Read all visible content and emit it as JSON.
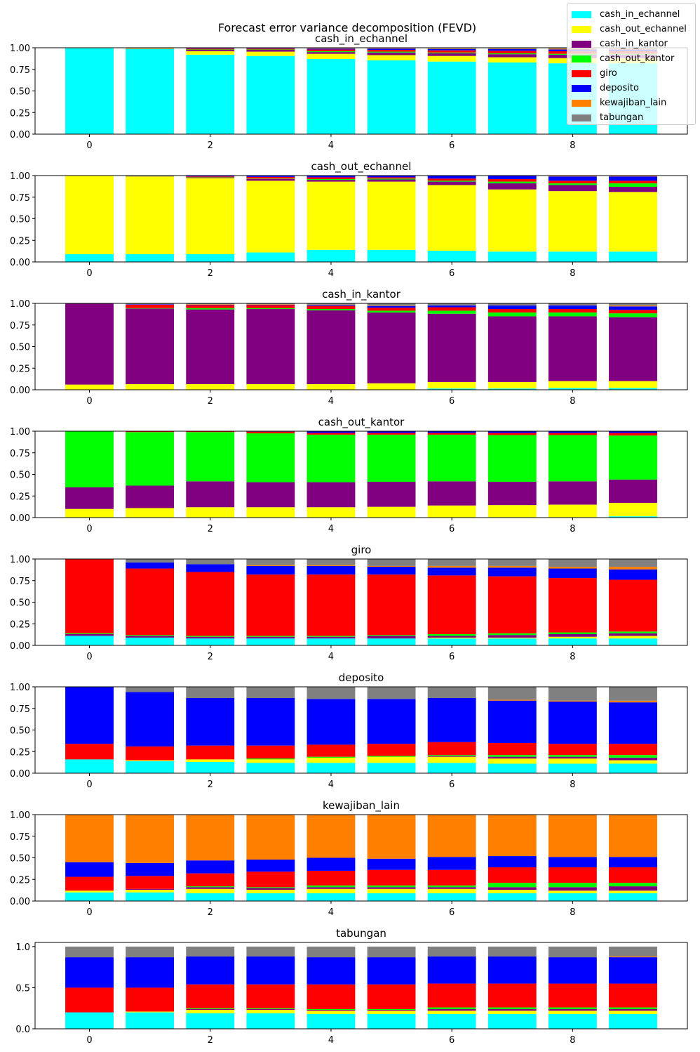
{
  "chart_data": {
    "type": "bar",
    "stacked": true,
    "suptitle": "Forecast error variance decomposition (FEVD)",
    "x": [
      0,
      1,
      2,
      3,
      4,
      5,
      6,
      7,
      8,
      9
    ],
    "xticks": [
      "0",
      "2",
      "4",
      "6",
      "8"
    ],
    "legend_position": "top-right",
    "grid": false,
    "series_names": [
      "cash_in_echannel",
      "cash_out_echannel",
      "cash_in_kantor",
      "cash_out_kantor",
      "giro",
      "deposito",
      "kewajiban_lain",
      "tabungan"
    ],
    "colors": [
      "#00ffff",
      "#ffff00",
      "#800080",
      "#00ff00",
      "#ff0000",
      "#0000ff",
      "#ff8000",
      "#808080"
    ],
    "panels": [
      {
        "title": "cash_in_echannel",
        "ylim": [
          0,
          1.0
        ],
        "yticks": [
          "0.00",
          "0.25",
          "0.50",
          "0.75",
          "1.00"
        ],
        "values": [
          [
            0.995,
            0.002,
            0.001,
            0.001,
            0.001,
            0.0,
            0.0,
            0.0
          ],
          [
            0.985,
            0.005,
            0.003,
            0.002,
            0.003,
            0.001,
            0.0,
            0.001
          ],
          [
            0.92,
            0.04,
            0.015,
            0.005,
            0.01,
            0.005,
            0.002,
            0.003
          ],
          [
            0.905,
            0.05,
            0.02,
            0.005,
            0.01,
            0.005,
            0.002,
            0.003
          ],
          [
            0.87,
            0.06,
            0.02,
            0.01,
            0.02,
            0.01,
            0.005,
            0.005
          ],
          [
            0.855,
            0.06,
            0.03,
            0.01,
            0.02,
            0.015,
            0.005,
            0.005
          ],
          [
            0.84,
            0.065,
            0.03,
            0.01,
            0.025,
            0.015,
            0.005,
            0.01
          ],
          [
            0.83,
            0.06,
            0.035,
            0.01,
            0.03,
            0.02,
            0.005,
            0.01
          ],
          [
            0.82,
            0.06,
            0.04,
            0.01,
            0.03,
            0.02,
            0.01,
            0.01
          ],
          [
            0.82,
            0.06,
            0.04,
            0.01,
            0.03,
            0.02,
            0.01,
            0.01
          ]
        ]
      },
      {
        "title": "cash_out_echannel",
        "ylim": [
          0,
          1.0
        ],
        "yticks": [
          "0.00",
          "0.25",
          "0.50",
          "0.75",
          "1.00"
        ],
        "values": [
          [
            0.09,
            0.91,
            0.0,
            0.0,
            0.0,
            0.0,
            0.0,
            0.0
          ],
          [
            0.09,
            0.9,
            0.003,
            0.002,
            0.003,
            0.002,
            0.0,
            0.0
          ],
          [
            0.09,
            0.88,
            0.005,
            0.005,
            0.01,
            0.01,
            0.0,
            0.0
          ],
          [
            0.11,
            0.83,
            0.02,
            0.005,
            0.02,
            0.015,
            0.0,
            0.0
          ],
          [
            0.14,
            0.79,
            0.02,
            0.01,
            0.02,
            0.02,
            0.0,
            0.0
          ],
          [
            0.14,
            0.79,
            0.025,
            0.01,
            0.015,
            0.02,
            0.0,
            0.0
          ],
          [
            0.13,
            0.76,
            0.04,
            0.01,
            0.025,
            0.035,
            0.0,
            0.0
          ],
          [
            0.12,
            0.72,
            0.07,
            0.02,
            0.03,
            0.04,
            0.0,
            0.0
          ],
          [
            0.12,
            0.7,
            0.07,
            0.02,
            0.03,
            0.05,
            0.01,
            0.0
          ],
          [
            0.12,
            0.69,
            0.06,
            0.04,
            0.03,
            0.05,
            0.01,
            0.0
          ]
        ]
      },
      {
        "title": "cash_in_kantor",
        "ylim": [
          0,
          1.0
        ],
        "yticks": [
          "0.00",
          "0.25",
          "0.50",
          "0.75",
          "1.00"
        ],
        "values": [
          [
            0.0,
            0.06,
            0.94,
            0.0,
            0.0,
            0.0,
            0.0,
            0.0
          ],
          [
            0.0,
            0.065,
            0.875,
            0.005,
            0.04,
            0.005,
            0.0,
            0.01
          ],
          [
            0.0,
            0.065,
            0.865,
            0.015,
            0.035,
            0.005,
            0.005,
            0.01
          ],
          [
            0.0,
            0.065,
            0.87,
            0.01,
            0.035,
            0.005,
            0.005,
            0.01
          ],
          [
            0.0,
            0.065,
            0.855,
            0.015,
            0.035,
            0.01,
            0.005,
            0.015
          ],
          [
            0.0,
            0.075,
            0.82,
            0.02,
            0.035,
            0.02,
            0.005,
            0.025
          ],
          [
            0.015,
            0.075,
            0.79,
            0.035,
            0.04,
            0.02,
            0.0,
            0.025
          ],
          [
            0.015,
            0.075,
            0.76,
            0.045,
            0.04,
            0.04,
            0.0,
            0.025
          ],
          [
            0.02,
            0.08,
            0.75,
            0.045,
            0.04,
            0.04,
            0.0,
            0.025
          ],
          [
            0.02,
            0.08,
            0.74,
            0.045,
            0.04,
            0.04,
            0.01,
            0.025
          ]
        ]
      },
      {
        "title": "cash_out_kantor",
        "ylim": [
          0,
          1.0
        ],
        "yticks": [
          "0.00",
          "0.25",
          "0.50",
          "0.75",
          "1.00"
        ],
        "values": [
          [
            0.0,
            0.1,
            0.25,
            0.65,
            0.0,
            0.0,
            0.0,
            0.0
          ],
          [
            0.0,
            0.11,
            0.26,
            0.62,
            0.01,
            0.0,
            0.0,
            0.0
          ],
          [
            0.0,
            0.12,
            0.3,
            0.57,
            0.01,
            0.0,
            0.0,
            0.0
          ],
          [
            0.0,
            0.12,
            0.29,
            0.565,
            0.02,
            0.005,
            0.0,
            0.0
          ],
          [
            0.0,
            0.12,
            0.29,
            0.55,
            0.02,
            0.02,
            0.0,
            0.0
          ],
          [
            0.0,
            0.125,
            0.29,
            0.545,
            0.02,
            0.02,
            0.0,
            0.0
          ],
          [
            0.0,
            0.14,
            0.28,
            0.54,
            0.02,
            0.02,
            0.0,
            0.0
          ],
          [
            0.005,
            0.14,
            0.27,
            0.54,
            0.025,
            0.02,
            0.0,
            0.0
          ],
          [
            0.005,
            0.145,
            0.27,
            0.535,
            0.025,
            0.02,
            0.0,
            0.0
          ],
          [
            0.015,
            0.155,
            0.27,
            0.51,
            0.03,
            0.02,
            0.0,
            0.0
          ]
        ]
      },
      {
        "title": "giro",
        "ylim": [
          0,
          1.0
        ],
        "yticks": [
          "0.00",
          "0.25",
          "0.50",
          "0.75",
          "1.00"
        ],
        "values": [
          [
            0.11,
            0.0,
            0.02,
            0.01,
            0.86,
            0.0,
            0.0,
            0.0
          ],
          [
            0.09,
            0.0,
            0.02,
            0.01,
            0.77,
            0.07,
            0.0,
            0.04
          ],
          [
            0.08,
            0.0,
            0.02,
            0.01,
            0.74,
            0.09,
            0.0,
            0.06
          ],
          [
            0.08,
            0.0,
            0.02,
            0.01,
            0.71,
            0.1,
            0.01,
            0.07
          ],
          [
            0.08,
            0.0,
            0.02,
            0.01,
            0.71,
            0.1,
            0.01,
            0.07
          ],
          [
            0.08,
            0.0,
            0.03,
            0.01,
            0.7,
            0.09,
            0.01,
            0.08
          ],
          [
            0.08,
            0.01,
            0.02,
            0.02,
            0.68,
            0.09,
            0.02,
            0.08
          ],
          [
            0.08,
            0.01,
            0.03,
            0.02,
            0.66,
            0.1,
            0.02,
            0.08
          ],
          [
            0.08,
            0.02,
            0.03,
            0.02,
            0.63,
            0.11,
            0.02,
            0.09
          ],
          [
            0.08,
            0.03,
            0.03,
            0.02,
            0.6,
            0.12,
            0.03,
            0.09
          ]
        ]
      },
      {
        "title": "deposito",
        "ylim": [
          0,
          1.0
        ],
        "yticks": [
          "0.00",
          "0.25",
          "0.50",
          "0.75",
          "1.00"
        ],
        "values": [
          [
            0.16,
            0.0,
            0.0,
            0.0,
            0.18,
            0.66,
            0.0,
            0.0
          ],
          [
            0.14,
            0.01,
            0.0,
            0.0,
            0.16,
            0.63,
            0.0,
            0.06
          ],
          [
            0.13,
            0.03,
            0.0,
            0.0,
            0.16,
            0.55,
            0.0,
            0.13
          ],
          [
            0.12,
            0.04,
            0.0,
            0.01,
            0.15,
            0.55,
            0.0,
            0.13
          ],
          [
            0.12,
            0.06,
            0.0,
            0.01,
            0.14,
            0.53,
            0.0,
            0.14
          ],
          [
            0.12,
            0.07,
            0.0,
            0.01,
            0.14,
            0.52,
            0.0,
            0.14
          ],
          [
            0.12,
            0.07,
            0.01,
            0.01,
            0.15,
            0.51,
            0.0,
            0.13
          ],
          [
            0.11,
            0.06,
            0.02,
            0.02,
            0.14,
            0.49,
            0.01,
            0.15
          ],
          [
            0.11,
            0.06,
            0.02,
            0.02,
            0.13,
            0.49,
            0.01,
            0.16
          ],
          [
            0.11,
            0.04,
            0.03,
            0.03,
            0.13,
            0.48,
            0.02,
            0.16
          ]
        ]
      },
      {
        "title": "kewajiban_lain",
        "ylim": [
          0,
          1.0
        ],
        "yticks": [
          "0.00",
          "0.25",
          "0.50",
          "0.75",
          "1.00"
        ],
        "values": [
          [
            0.1,
            0.02,
            0.0,
            0.0,
            0.16,
            0.17,
            0.55,
            0.0
          ],
          [
            0.1,
            0.03,
            0.01,
            0.0,
            0.15,
            0.15,
            0.56,
            0.0
          ],
          [
            0.09,
            0.05,
            0.02,
            0.01,
            0.15,
            0.15,
            0.53,
            0.0
          ],
          [
            0.09,
            0.04,
            0.02,
            0.01,
            0.18,
            0.14,
            0.52,
            0.0
          ],
          [
            0.09,
            0.05,
            0.02,
            0.02,
            0.17,
            0.15,
            0.5,
            0.0
          ],
          [
            0.09,
            0.05,
            0.02,
            0.02,
            0.18,
            0.13,
            0.51,
            0.0
          ],
          [
            0.09,
            0.05,
            0.02,
            0.02,
            0.18,
            0.15,
            0.49,
            0.0
          ],
          [
            0.09,
            0.04,
            0.03,
            0.05,
            0.18,
            0.13,
            0.48,
            0.0
          ],
          [
            0.09,
            0.03,
            0.04,
            0.05,
            0.18,
            0.12,
            0.49,
            0.0
          ],
          [
            0.09,
            0.03,
            0.05,
            0.04,
            0.18,
            0.12,
            0.49,
            0.0
          ]
        ]
      },
      {
        "title": "tabungan",
        "ylim": [
          0,
          1.05
        ],
        "yticks": [
          "0.0",
          "0.5",
          "1.0"
        ],
        "values": [
          [
            0.2,
            0.0,
            0.0,
            0.0,
            0.3,
            0.37,
            0.0,
            0.13
          ],
          [
            0.2,
            0.01,
            0.0,
            0.0,
            0.29,
            0.37,
            0.0,
            0.13
          ],
          [
            0.19,
            0.04,
            0.01,
            0.01,
            0.29,
            0.34,
            0.0,
            0.12
          ],
          [
            0.19,
            0.04,
            0.01,
            0.01,
            0.29,
            0.34,
            0.0,
            0.12
          ],
          [
            0.18,
            0.04,
            0.01,
            0.01,
            0.3,
            0.33,
            0.0,
            0.13
          ],
          [
            0.18,
            0.04,
            0.01,
            0.01,
            0.3,
            0.33,
            0.0,
            0.13
          ],
          [
            0.18,
            0.04,
            0.02,
            0.02,
            0.29,
            0.33,
            0.0,
            0.12
          ],
          [
            0.18,
            0.04,
            0.02,
            0.02,
            0.29,
            0.33,
            0.0,
            0.12
          ],
          [
            0.18,
            0.04,
            0.02,
            0.02,
            0.29,
            0.32,
            0.0,
            0.13
          ],
          [
            0.18,
            0.04,
            0.02,
            0.02,
            0.29,
            0.32,
            0.01,
            0.12
          ]
        ]
      }
    ]
  }
}
